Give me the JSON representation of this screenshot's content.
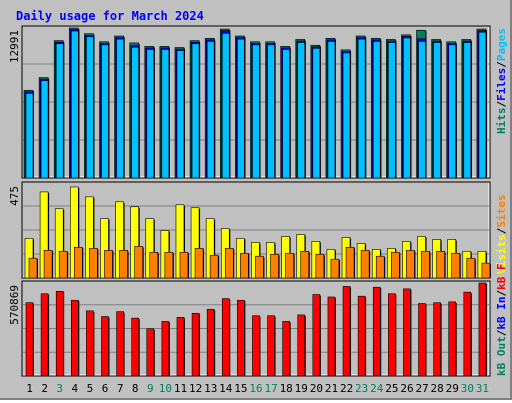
{
  "title": "Daily usage for March 2024",
  "colors": {
    "background": "#c0c0c0",
    "panel": "#c0c0c0",
    "title": "#0000ff",
    "hits": "#00805c",
    "files": "#0000ff",
    "pages": "#00c0ff",
    "visits": "#ffff00",
    "sites": "#ff8000",
    "kbin": "#0000ff",
    "kbout": "#00805c",
    "kbf": "#ff0000",
    "day_normal": "#000000",
    "day_weekend": "#00805c"
  },
  "right_labels": {
    "top": [
      {
        "text": "Hits",
        "color": "#00805c"
      },
      {
        "text": "/",
        "color": "#000000"
      },
      {
        "text": "Files",
        "color": "#0000ff"
      },
      {
        "text": "/",
        "color": "#000000"
      },
      {
        "text": "Pages",
        "color": "#00c0ff"
      }
    ],
    "middle": [
      {
        "text": "Visits",
        "color": "#ffff00"
      },
      {
        "text": "/",
        "color": "#000000"
      },
      {
        "text": "Sites",
        "color": "#ff8000"
      }
    ],
    "bottom": [
      {
        "text": "kB Out",
        "color": "#00805c"
      },
      {
        "text": "/",
        "color": "#000000"
      },
      {
        "text": "kB In",
        "color": "#0000ff"
      },
      {
        "text": "/",
        "color": "#000000"
      },
      {
        "text": "kB F",
        "color": "#ff0000"
      }
    ]
  },
  "chart_data": [
    {
      "type": "bar",
      "title": "Daily usage for March 2024",
      "ylabel_max": "12991",
      "ylim": [
        0,
        12991
      ],
      "x": [
        1,
        2,
        3,
        4,
        5,
        6,
        7,
        8,
        9,
        10,
        11,
        12,
        13,
        14,
        15,
        16,
        17,
        18,
        19,
        20,
        21,
        22,
        23,
        24,
        25,
        26,
        27,
        28,
        29,
        30,
        31
      ],
      "series": [
        {
          "name": "Hits",
          "values": [
            7600,
            8700,
            11900,
            12991,
            12500,
            11800,
            12300,
            11700,
            11400,
            11400,
            11300,
            11900,
            12100,
            12900,
            12300,
            11800,
            11800,
            11400,
            12000,
            11500,
            12100,
            11100,
            12300,
            12100,
            12000,
            12400,
            12800,
            12000,
            11800,
            12000,
            12900
          ]
        },
        {
          "name": "Files",
          "values": [
            7550,
            8650,
            11850,
            12950,
            12450,
            11750,
            12250,
            11550,
            11350,
            11350,
            11250,
            11850,
            12050,
            12850,
            12250,
            11750,
            11750,
            11350,
            11950,
            11450,
            12050,
            11050,
            12250,
            12050,
            11950,
            12350,
            12150,
            11950,
            11750,
            11950,
            12850
          ]
        },
        {
          "name": "Pages",
          "values": [
            7500,
            8600,
            11800,
            12900,
            12400,
            11700,
            12200,
            11500,
            11300,
            11300,
            11200,
            11800,
            12000,
            12700,
            12200,
            11700,
            11700,
            11300,
            11900,
            11400,
            12000,
            11000,
            12200,
            12000,
            11900,
            12300,
            12000,
            11900,
            11700,
            11900,
            12800
          ]
        }
      ]
    },
    {
      "type": "bar",
      "ylabel_max": "475",
      "ylim": [
        0,
        475
      ],
      "x": [
        1,
        2,
        3,
        4,
        5,
        6,
        7,
        8,
        9,
        10,
        11,
        12,
        13,
        14,
        15,
        16,
        17,
        18,
        19,
        20,
        21,
        22,
        23,
        24,
        25,
        26,
        27,
        28,
        29,
        30,
        31
      ],
      "series": [
        {
          "name": "Visits",
          "values": [
            200,
            435,
            350,
            460,
            410,
            300,
            385,
            360,
            300,
            240,
            370,
            355,
            300,
            250,
            200,
            180,
            180,
            210,
            220,
            185,
            145,
            205,
            175,
            145,
            150,
            185,
            210,
            195,
            195,
            135,
            135
          ]
        },
        {
          "name": "Sites",
          "values": [
            100,
            140,
            135,
            155,
            150,
            140,
            140,
            160,
            130,
            130,
            130,
            150,
            115,
            150,
            125,
            110,
            120,
            125,
            135,
            120,
            95,
            155,
            140,
            110,
            130,
            140,
            135,
            135,
            125,
            100,
            75
          ]
        }
      ]
    },
    {
      "type": "bar",
      "ylabel_max": "570869",
      "ylim": [
        0,
        570869
      ],
      "x": [
        1,
        2,
        3,
        4,
        5,
        6,
        7,
        8,
        9,
        10,
        11,
        12,
        13,
        14,
        15,
        16,
        17,
        18,
        19,
        20,
        21,
        22,
        23,
        24,
        25,
        26,
        27,
        28,
        29,
        30,
        31
      ],
      "series": [
        {
          "name": "kB F",
          "values": [
            450000,
            505000,
            520000,
            465000,
            400000,
            365000,
            395000,
            355000,
            290000,
            335000,
            360000,
            385000,
            410000,
            475000,
            465000,
            370000,
            370000,
            335000,
            375000,
            500000,
            485000,
            550000,
            490000,
            545000,
            505000,
            535000,
            445000,
            450000,
            455000,
            515000,
            570869
          ]
        }
      ]
    }
  ],
  "day_colors": [
    "normal",
    "normal",
    "weekend",
    "normal",
    "normal",
    "normal",
    "normal",
    "normal",
    "weekend",
    "weekend",
    "normal",
    "normal",
    "normal",
    "normal",
    "normal",
    "weekend",
    "weekend",
    "normal",
    "normal",
    "normal",
    "normal",
    "normal",
    "weekend",
    "weekend",
    "normal",
    "normal",
    "normal",
    "normal",
    "normal",
    "weekend",
    "weekend"
  ]
}
